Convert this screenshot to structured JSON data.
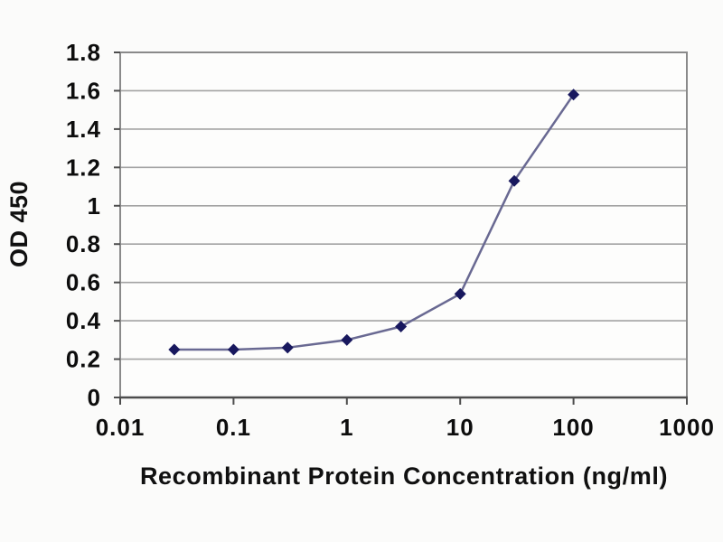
{
  "figure": {
    "background": "#fbfbfa",
    "title": ""
  },
  "chart_data": {
    "type": "line",
    "x": [
      0.03,
      0.1,
      0.3,
      1,
      3,
      10,
      30,
      100
    ],
    "series": [
      {
        "name": "OD 450",
        "values": [
          0.25,
          0.25,
          0.26,
          0.3,
          0.37,
          0.54,
          1.13,
          1.58
        ]
      }
    ],
    "title": "",
    "xlabel": "Recombinant Protein Concentration (ng/ml)",
    "ylabel": "OD 450",
    "x_scale": "log",
    "xlim": [
      0.01,
      1000
    ],
    "ylim": [
      0,
      1.8
    ],
    "x_ticks": [
      0.01,
      0.1,
      1,
      10,
      100,
      1000
    ],
    "x_tick_labels": [
      "0.01",
      "0.1",
      "1",
      "10",
      "100",
      "1000"
    ],
    "y_ticks": [
      0,
      0.2,
      0.4,
      0.6,
      0.8,
      1,
      1.2,
      1.4,
      1.6,
      1.8
    ],
    "y_tick_labels": [
      "0",
      "0.2",
      "0.4",
      "0.6",
      "0.8",
      "1",
      "1.2",
      "1.4",
      "1.6",
      "1.8"
    ],
    "grid": "horizontal-major",
    "legend": "none",
    "marker": "diamond",
    "colors": {
      "line": "#696992",
      "marker": "#18185e",
      "grid": "#a3a3a3",
      "frame": "#8a8a8a",
      "axis": "#4d4d4d",
      "tick_text": "#0d0d0d",
      "plot_background": "#fdfdfc"
    }
  }
}
